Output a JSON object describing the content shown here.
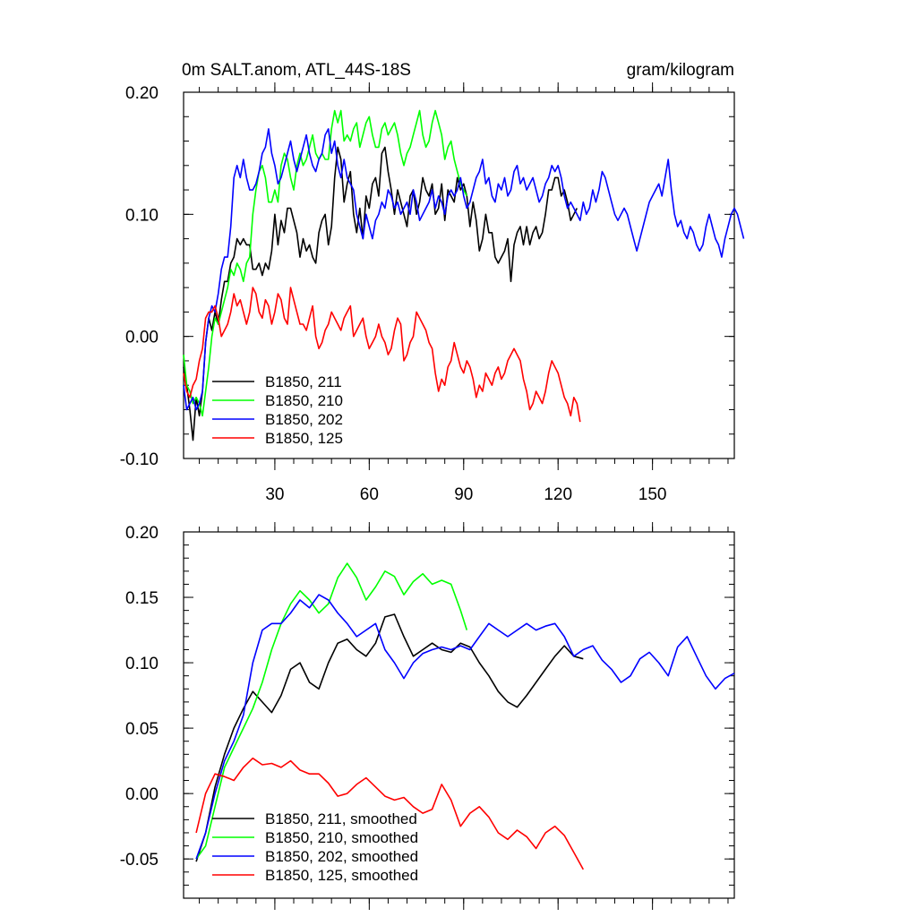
{
  "chart_data": [
    {
      "type": "line",
      "title": "0m SALT.anom, ATL_44S-18S",
      "units": "gram/kilogram",
      "xlim": [
        1,
        176
      ],
      "ylim": [
        -0.1,
        0.2
      ],
      "xticks": [
        30,
        60,
        90,
        120,
        150
      ],
      "xtick_labels": [
        "30",
        "60",
        "90",
        "120",
        "150"
      ],
      "yticks": [
        -0.1,
        0.0,
        0.1,
        0.2
      ],
      "ytick_labels": [
        "-0.10",
        "0.00",
        "0.10",
        "0.20"
      ],
      "grid": false,
      "legend_position": "bottom-left",
      "series": [
        {
          "name": "B1850, 211",
          "color": "#000000",
          "x_start": 1,
          "values": [
            -0.025,
            -0.04,
            -0.06,
            -0.085,
            -0.05,
            -0.065,
            -0.045,
            -0.005,
            0.015,
            0.005,
            0.02,
            0.01,
            0.03,
            0.045,
            0.045,
            0.06,
            0.065,
            0.08,
            0.075,
            0.08,
            0.075,
            0.075,
            0.055,
            0.055,
            0.06,
            0.05,
            0.06,
            0.055,
            0.07,
            0.1,
            0.075,
            0.095,
            0.085,
            0.105,
            0.105,
            0.095,
            0.085,
            0.065,
            0.08,
            0.07,
            0.075,
            0.065,
            0.06,
            0.085,
            0.095,
            0.1,
            0.075,
            0.09,
            0.13,
            0.155,
            0.145,
            0.11,
            0.125,
            0.135,
            0.1,
            0.085,
            0.105,
            0.08,
            0.115,
            0.105,
            0.125,
            0.13,
            0.115,
            0.15,
            0.155,
            0.135,
            0.12,
            0.1,
            0.12,
            0.11,
            0.1,
            0.09,
            0.115,
            0.12,
            0.1,
            0.11,
            0.13,
            0.12,
            0.115,
            0.125,
            0.1,
            0.105,
            0.125,
            0.095,
            0.12,
            0.115,
            0.11,
            0.13,
            0.12,
            0.125,
            0.115,
            0.09,
            0.11,
            0.095,
            0.07,
            0.08,
            0.1,
            0.085,
            0.085,
            0.065,
            0.06,
            0.065,
            0.07,
            0.08,
            0.045,
            0.075,
            0.085,
            0.09,
            0.075,
            0.09,
            0.075,
            0.085,
            0.09,
            0.08,
            0.085,
            0.1,
            0.12,
            0.12,
            0.13,
            0.13,
            0.115,
            0.12,
            0.11,
            0.095,
            0.1,
            0.105
          ]
        },
        {
          "name": "B1850, 210",
          "color": "#00ff00",
          "x_start": 1,
          "values": [
            -0.015,
            -0.04,
            -0.045,
            -0.055,
            -0.05,
            -0.055,
            -0.065,
            -0.045,
            -0.025,
            0.0,
            0.015,
            0.01,
            0.02,
            0.03,
            0.04,
            0.055,
            0.05,
            0.06,
            0.055,
            0.045,
            0.06,
            0.065,
            0.1,
            0.12,
            0.135,
            0.14,
            0.13,
            0.11,
            0.11,
            0.12,
            0.11,
            0.14,
            0.15,
            0.145,
            0.13,
            0.12,
            0.14,
            0.15,
            0.14,
            0.145,
            0.155,
            0.165,
            0.15,
            0.145,
            0.15,
            0.145,
            0.145,
            0.17,
            0.185,
            0.175,
            0.185,
            0.16,
            0.165,
            0.16,
            0.17,
            0.175,
            0.155,
            0.165,
            0.175,
            0.18,
            0.165,
            0.155,
            0.155,
            0.17,
            0.175,
            0.165,
            0.17,
            0.175,
            0.165,
            0.15,
            0.14,
            0.15,
            0.155,
            0.165,
            0.175,
            0.185,
            0.165,
            0.155,
            0.16,
            0.175,
            0.185,
            0.175,
            0.165,
            0.145,
            0.155,
            0.16,
            0.145,
            0.135,
            0.125,
            0.12,
            0.115
          ]
        },
        {
          "name": "B1850, 202",
          "color": "#0000ff",
          "x_start": 1,
          "values": [
            -0.04,
            -0.06,
            -0.055,
            -0.05,
            -0.06,
            -0.055,
            -0.045,
            -0.005,
            0.015,
            0.025,
            0.02,
            0.035,
            0.055,
            0.065,
            0.065,
            0.09,
            0.13,
            0.14,
            0.13,
            0.145,
            0.13,
            0.12,
            0.12,
            0.125,
            0.135,
            0.15,
            0.155,
            0.17,
            0.15,
            0.14,
            0.125,
            0.13,
            0.14,
            0.15,
            0.16,
            0.145,
            0.135,
            0.145,
            0.155,
            0.165,
            0.15,
            0.14,
            0.135,
            0.145,
            0.15,
            0.165,
            0.17,
            0.15,
            0.16,
            0.14,
            0.13,
            0.145,
            0.13,
            0.125,
            0.12,
            0.1,
            0.09,
            0.08,
            0.1,
            0.09,
            0.08,
            0.095,
            0.1,
            0.11,
            0.105,
            0.12,
            0.115,
            0.105,
            0.11,
            0.1,
            0.105,
            0.11,
            0.1,
            0.12,
            0.11,
            0.095,
            0.1,
            0.105,
            0.11,
            0.12,
            0.105,
            0.115,
            0.11,
            0.1,
            0.115,
            0.12,
            0.115,
            0.12,
            0.13,
            0.115,
            0.105,
            0.11,
            0.12,
            0.13,
            0.135,
            0.145,
            0.125,
            0.13,
            0.115,
            0.11,
            0.125,
            0.12,
            0.13,
            0.115,
            0.12,
            0.135,
            0.14,
            0.125,
            0.13,
            0.12,
            0.125,
            0.13,
            0.12,
            0.11,
            0.115,
            0.125,
            0.13,
            0.14,
            0.135,
            0.14,
            0.13,
            0.115,
            0.105,
            0.11,
            0.105,
            0.1,
            0.095,
            0.11,
            0.1,
            0.105,
            0.12,
            0.11,
            0.12,
            0.135,
            0.13,
            0.12,
            0.11,
            0.1,
            0.095,
            0.1,
            0.105,
            0.1,
            0.09,
            0.08,
            0.07,
            0.08,
            0.09,
            0.1,
            0.11,
            0.115,
            0.12,
            0.125,
            0.115,
            0.13,
            0.145,
            0.12,
            0.1,
            0.09,
            0.095,
            0.085,
            0.08,
            0.09,
            0.085,
            0.075,
            0.07,
            0.075,
            0.09,
            0.1,
            0.09,
            0.08,
            0.075,
            0.065,
            0.08,
            0.09,
            0.1,
            0.105,
            0.1,
            0.09,
            0.08
          ]
        },
        {
          "name": "B1850, 125",
          "color": "#ff0000",
          "x_start": 1,
          "values": [
            -0.03,
            -0.045,
            -0.05,
            -0.04,
            -0.035,
            -0.02,
            -0.01,
            0.015,
            0.02,
            0.02,
            0.025,
            0.015,
            0.0,
            0.005,
            0.01,
            0.02,
            0.035,
            0.025,
            0.03,
            0.02,
            0.01,
            0.02,
            0.04,
            0.035,
            0.02,
            0.015,
            0.03,
            0.025,
            0.01,
            0.02,
            0.035,
            0.03,
            0.015,
            0.01,
            0.04,
            0.03,
            0.02,
            0.01,
            0.01,
            0.005,
            0.015,
            0.025,
            0.0,
            -0.01,
            -0.005,
            0.005,
            0.01,
            0.02,
            0.015,
            0.01,
            0.005,
            0.015,
            0.02,
            0.025,
            0.0,
            0.005,
            0.01,
            0.015,
            0.0,
            -0.01,
            -0.005,
            0.0,
            0.01,
            0.0,
            -0.005,
            -0.015,
            -0.01,
            0.005,
            0.015,
            0.01,
            -0.02,
            -0.015,
            -0.005,
            0.0,
            0.02,
            0.015,
            0.01,
            0.005,
            -0.005,
            -0.01,
            -0.03,
            -0.045,
            -0.035,
            -0.04,
            -0.025,
            -0.02,
            -0.005,
            -0.015,
            -0.025,
            -0.03,
            -0.02,
            -0.025,
            -0.035,
            -0.05,
            -0.04,
            -0.045,
            -0.03,
            -0.035,
            -0.04,
            -0.03,
            -0.025,
            -0.035,
            -0.03,
            -0.02,
            -0.015,
            -0.01,
            -0.015,
            -0.02,
            -0.035,
            -0.045,
            -0.06,
            -0.055,
            -0.045,
            -0.05,
            -0.055,
            -0.045,
            -0.03,
            -0.02,
            -0.025,
            -0.03,
            -0.04,
            -0.05,
            -0.055,
            -0.065,
            -0.05,
            -0.055,
            -0.07
          ]
        }
      ]
    },
    {
      "type": "line",
      "title": "",
      "xlim": [
        1,
        176
      ],
      "ylim": [
        -0.08,
        0.2
      ],
      "yticks": [
        -0.05,
        0.0,
        0.05,
        0.1,
        0.15,
        0.2
      ],
      "ytick_labels": [
        "-0.05",
        "0.00",
        "0.05",
        "0.10",
        "0.15",
        "0.20"
      ],
      "xticks": [
        30,
        60,
        90,
        120,
        150
      ],
      "grid": false,
      "legend_position": "bottom-left",
      "series": [
        {
          "name": "B1850, 211, smoothed",
          "color": "#000000",
          "x": [
            5,
            8,
            11,
            14,
            17,
            20,
            23,
            26,
            29,
            32,
            35,
            38,
            41,
            44,
            47,
            50,
            53,
            56,
            59,
            62,
            65,
            68,
            71,
            74,
            77,
            80,
            83,
            86,
            89,
            92,
            95,
            98,
            101,
            104,
            107,
            110,
            113,
            116,
            119,
            122,
            125,
            128
          ],
          "values": [
            -0.052,
            -0.03,
            0.005,
            0.03,
            0.05,
            0.065,
            0.078,
            0.07,
            0.062,
            0.075,
            0.095,
            0.1,
            0.085,
            0.08,
            0.1,
            0.115,
            0.118,
            0.11,
            0.105,
            0.115,
            0.135,
            0.137,
            0.12,
            0.105,
            0.11,
            0.115,
            0.11,
            0.108,
            0.115,
            0.112,
            0.1,
            0.09,
            0.078,
            0.07,
            0.066,
            0.075,
            0.085,
            0.095,
            0.105,
            0.113,
            0.105,
            0.103
          ]
        },
        {
          "name": "B1850, 210",
          "color": "#00ff00",
          "x": [
            5,
            8,
            11,
            14,
            17,
            20,
            23,
            26,
            29,
            32,
            35,
            38,
            41,
            44,
            47,
            50,
            53,
            56,
            59,
            62,
            65,
            68,
            71,
            74,
            77,
            80,
            83,
            86,
            89,
            91
          ],
          "values": [
            -0.05,
            -0.04,
            -0.01,
            0.02,
            0.035,
            0.05,
            0.065,
            0.085,
            0.11,
            0.13,
            0.145,
            0.155,
            0.148,
            0.138,
            0.145,
            0.165,
            0.176,
            0.165,
            0.148,
            0.158,
            0.17,
            0.166,
            0.152,
            0.162,
            0.168,
            0.16,
            0.163,
            0.16,
            0.14,
            0.125
          ]
        },
        {
          "name": "B1850, 202",
          "color": "#0000ff",
          "x": [
            5,
            8,
            11,
            14,
            17,
            20,
            23,
            26,
            29,
            32,
            35,
            38,
            41,
            44,
            47,
            50,
            53,
            56,
            59,
            62,
            65,
            68,
            71,
            74,
            77,
            80,
            83,
            86,
            89,
            92,
            95,
            98,
            101,
            104,
            107,
            110,
            113,
            116,
            119,
            122,
            125,
            128,
            131,
            134,
            137,
            140,
            143,
            146,
            149,
            152,
            155,
            158,
            161,
            164,
            167,
            170,
            173,
            176
          ],
          "values": [
            -0.05,
            -0.03,
            0.0,
            0.025,
            0.04,
            0.06,
            0.1,
            0.125,
            0.13,
            0.13,
            0.138,
            0.148,
            0.142,
            0.152,
            0.148,
            0.138,
            0.13,
            0.12,
            0.125,
            0.13,
            0.11,
            0.1,
            0.088,
            0.1,
            0.107,
            0.11,
            0.112,
            0.11,
            0.113,
            0.11,
            0.12,
            0.13,
            0.125,
            0.12,
            0.125,
            0.13,
            0.125,
            0.128,
            0.13,
            0.12,
            0.105,
            0.11,
            0.113,
            0.102,
            0.095,
            0.085,
            0.09,
            0.103,
            0.108,
            0.1,
            0.09,
            0.112,
            0.12,
            0.105,
            0.09,
            0.08,
            0.088,
            0.092
          ]
        },
        {
          "name": "B1850, 125",
          "color": "#ff0000",
          "x": [
            5,
            8,
            11,
            14,
            17,
            20,
            23,
            26,
            29,
            32,
            35,
            38,
            41,
            44,
            47,
            50,
            53,
            56,
            59,
            62,
            65,
            68,
            71,
            74,
            77,
            80,
            83,
            86,
            89,
            92,
            95,
            98,
            101,
            104,
            107,
            110,
            113,
            116,
            119,
            122,
            125,
            128
          ],
          "values": [
            -0.03,
            0.0,
            0.015,
            0.013,
            0.01,
            0.02,
            0.027,
            0.022,
            0.023,
            0.02,
            0.025,
            0.018,
            0.015,
            0.015,
            0.008,
            -0.002,
            0.0,
            0.007,
            0.012,
            0.005,
            -0.002,
            -0.005,
            -0.003,
            -0.01,
            -0.015,
            -0.012,
            0.007,
            -0.005,
            -0.025,
            -0.015,
            -0.01,
            -0.018,
            -0.03,
            -0.035,
            -0.028,
            -0.033,
            -0.042,
            -0.03,
            -0.025,
            -0.032,
            -0.045,
            -0.058
          ]
        }
      ]
    }
  ]
}
